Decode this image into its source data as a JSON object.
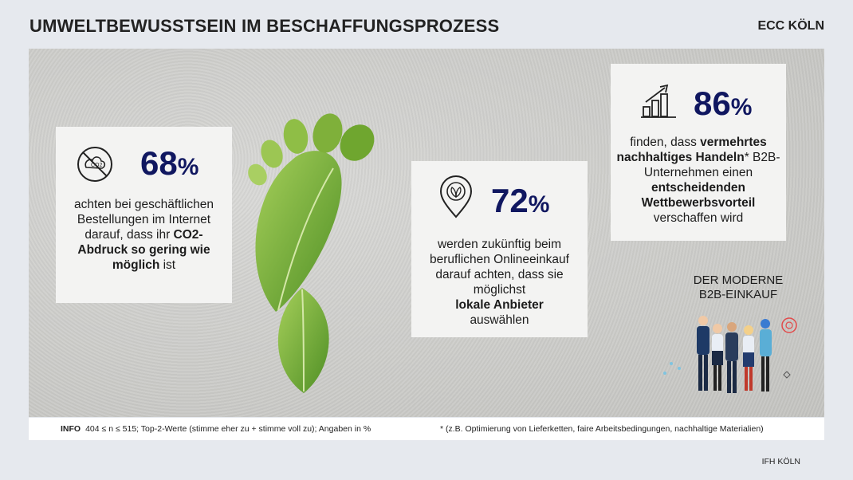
{
  "header": {
    "title": "UMWELTBEWUSSTSEIN IM BESCHAFFUNGSPROZESS",
    "brand": "ECC KÖLN"
  },
  "cards": [
    {
      "percent": "68",
      "percent_sign": "%",
      "icon": "no-co2-icon",
      "text_1": "achten bei geschäftlichen Bestellungen im Internet darauf, dass ihr ",
      "text_bold": "CO2-Abdruck so gering wie möglich",
      "text_2": " ist"
    },
    {
      "percent": "72",
      "percent_sign": "%",
      "icon": "location-pin-leaf-icon",
      "text_1": "werden zukünftig beim beruflichen Onlineeinkauf darauf achten, dass sie möglichst",
      "text_bold": "lokale Anbieter",
      "text_2": "auswählen"
    },
    {
      "percent": "86",
      "percent_sign": "%",
      "icon": "growth-chart-icon",
      "text_1": "finden, dass ",
      "text_bold_1": "vermehrtes nachhaltiges Handeln",
      "text_2": "* B2B-Unternehmen einen ",
      "text_bold_2": "entscheidenden Wettbewerbsvorteil",
      "text_3": " verschaffen wird"
    }
  ],
  "illustration": {
    "label_line1": "DER MODERNE",
    "label_line2": "B2B-EINKAUF",
    "image": "leaf-footprint"
  },
  "footer": {
    "info_label": "INFO",
    "info_text": "404 ≤ n ≤ 515; Top-2-Werte (stimme eher zu + stimme voll zu); Angaben in %",
    "note": "* (z.B. Optimierung von Lieferketten, faire Arbeitsbedingungen, nachhaltige Materialien)"
  },
  "source": "IFH KÖLN",
  "colors": {
    "accent": "#101760",
    "leaf": "#7fb03a",
    "background": "#e6e9ee"
  }
}
